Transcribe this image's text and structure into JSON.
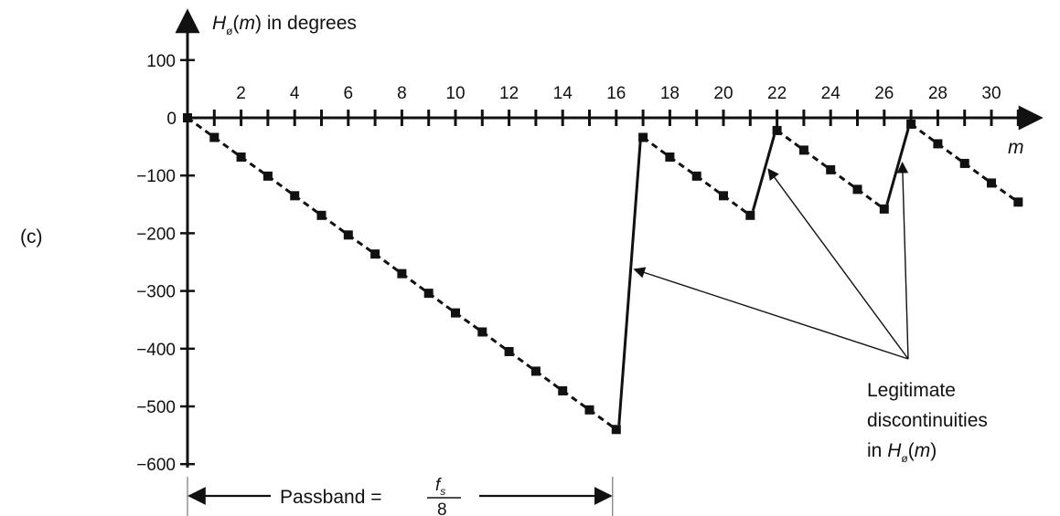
{
  "panel_label": "(c)",
  "y_axis_label": {
    "prefix": "H",
    "subscript": "ø",
    "arg": "m",
    "suffix": " in degrees"
  },
  "x_axis_label": "m",
  "annotation": {
    "line1": "Legitimate",
    "line2": "discontinuities",
    "line3_prefix": "in ",
    "line3_var": "H",
    "line3_sub": "ø",
    "line3_arg": "m"
  },
  "passband": {
    "label": "Passband = ",
    "numerator": "f",
    "numerator_sub": "s",
    "denominator": "8"
  },
  "chart_data": {
    "type": "scatter",
    "title": "",
    "xlabel": "m",
    "ylabel": "Hø(m) in degrees",
    "xlim": [
      0,
      31
    ],
    "ylim": [
      -600,
      100
    ],
    "x_ticks": [
      2,
      4,
      6,
      8,
      10,
      12,
      14,
      16,
      18,
      20,
      22,
      24,
      26,
      28,
      30
    ],
    "y_ticks": [
      100,
      0,
      -100,
      -200,
      -300,
      -400,
      -500,
      -600
    ],
    "series": [
      {
        "points": [
          [
            0,
            0
          ],
          [
            1,
            -34
          ],
          [
            2,
            -68
          ],
          [
            3,
            -101
          ],
          [
            4,
            -135
          ],
          [
            5,
            -169
          ],
          [
            6,
            -203
          ],
          [
            7,
            -236
          ],
          [
            8,
            -270
          ],
          [
            9,
            -304
          ],
          [
            10,
            -338
          ],
          [
            11,
            -371
          ],
          [
            12,
            -405
          ],
          [
            13,
            -439
          ],
          [
            14,
            -473
          ],
          [
            15,
            -506
          ],
          [
            16,
            -540
          ],
          [
            17,
            -34
          ],
          [
            18,
            -68
          ],
          [
            19,
            -101
          ],
          [
            20,
            -135
          ],
          [
            21,
            -169
          ],
          [
            22,
            -22
          ],
          [
            23,
            -56
          ],
          [
            24,
            -90
          ],
          [
            25,
            -124
          ],
          [
            26,
            -158
          ],
          [
            27,
            -11
          ],
          [
            28,
            -45
          ],
          [
            29,
            -79
          ],
          [
            30,
            -113
          ],
          [
            31,
            -146
          ]
        ]
      }
    ],
    "discontinuities": [
      [
        16,
        17
      ],
      [
        21,
        22
      ],
      [
        26,
        27
      ]
    ],
    "passband_range": [
      0,
      16
    ],
    "grid": false,
    "legend": "none"
  }
}
